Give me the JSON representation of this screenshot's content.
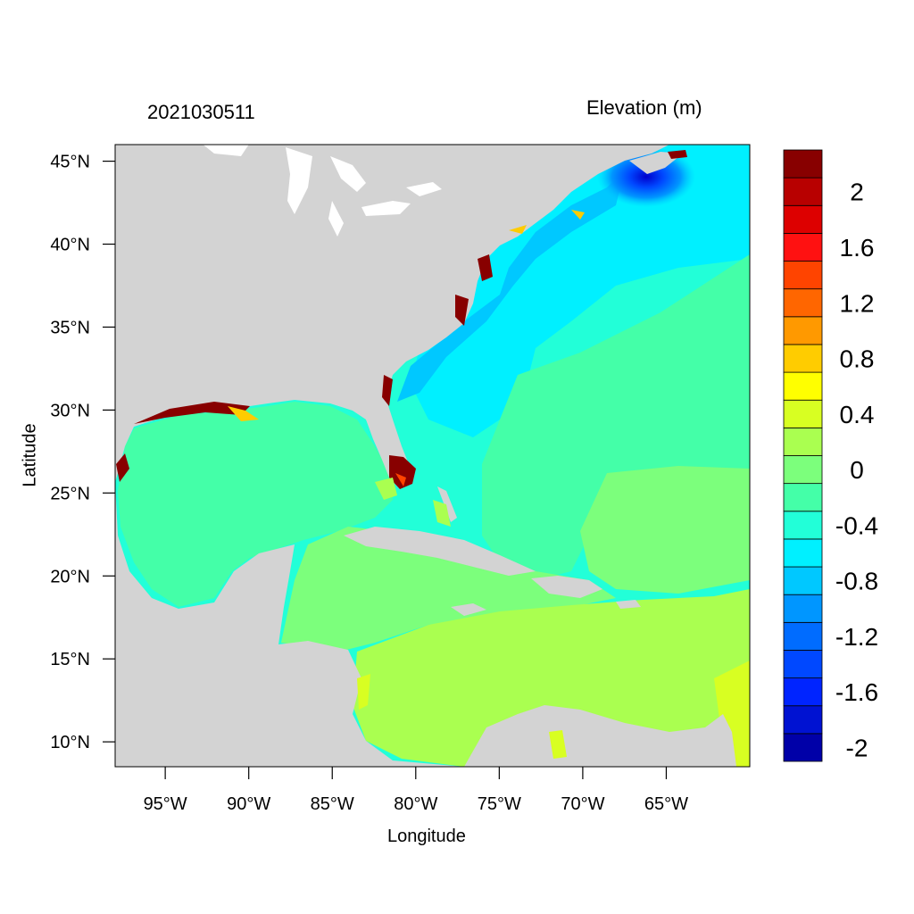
{
  "title_left": "2021030511",
  "title_right": "Elevation (m)",
  "xlabel": "Longitude",
  "ylabel": "Latitude",
  "map": {
    "lon_range": [
      -98,
      -60
    ],
    "lat_range": [
      8.5,
      46
    ],
    "lon_ticks": [
      {
        "value": -95,
        "label": "95°W"
      },
      {
        "value": -90,
        "label": "90°W"
      },
      {
        "value": -85,
        "label": "85°W"
      },
      {
        "value": -80,
        "label": "80°W"
      },
      {
        "value": -75,
        "label": "75°W"
      },
      {
        "value": -70,
        "label": "70°W"
      },
      {
        "value": -65,
        "label": "65°W"
      }
    ],
    "lat_ticks": [
      {
        "value": 45,
        "label": "45°N"
      },
      {
        "value": 40,
        "label": "40°N"
      },
      {
        "value": 35,
        "label": "35°N"
      },
      {
        "value": 30,
        "label": "30°N"
      },
      {
        "value": 25,
        "label": "25°N"
      },
      {
        "value": 20,
        "label": "20°N"
      },
      {
        "value": 15,
        "label": "15°N"
      },
      {
        "value": 10,
        "label": "10°N"
      }
    ],
    "land_color": "#d3d3d3"
  },
  "colorbar": {
    "colors": [
      "#0000a8",
      "#0012d2",
      "#0024ff",
      "#0048ff",
      "#006cff",
      "#0096ff",
      "#00c8ff",
      "#00f0ff",
      "#22ffd8",
      "#44ffa8",
      "#7cff7c",
      "#aaff50",
      "#d8ff22",
      "#ffff00",
      "#ffcc00",
      "#ff9900",
      "#ff6600",
      "#ff4400",
      "#ff1111",
      "#dd0000",
      "#b80000",
      "#880000"
    ],
    "labels": [
      {
        "boundary": 20,
        "text": "2"
      },
      {
        "boundary": 18,
        "text": "1.6"
      },
      {
        "boundary": 16,
        "text": "1.2"
      },
      {
        "boundary": 14,
        "text": "0.8"
      },
      {
        "boundary": 12,
        "text": "0.4"
      },
      {
        "boundary": 10,
        "text": "0"
      },
      {
        "boundary": 8,
        "text": "-0.4"
      },
      {
        "boundary": 6,
        "text": "-0.8"
      },
      {
        "boundary": 4,
        "text": "-1.2"
      },
      {
        "boundary": 2,
        "text": "-1.6"
      },
      {
        "boundary": 0,
        "text": "-2"
      }
    ]
  }
}
